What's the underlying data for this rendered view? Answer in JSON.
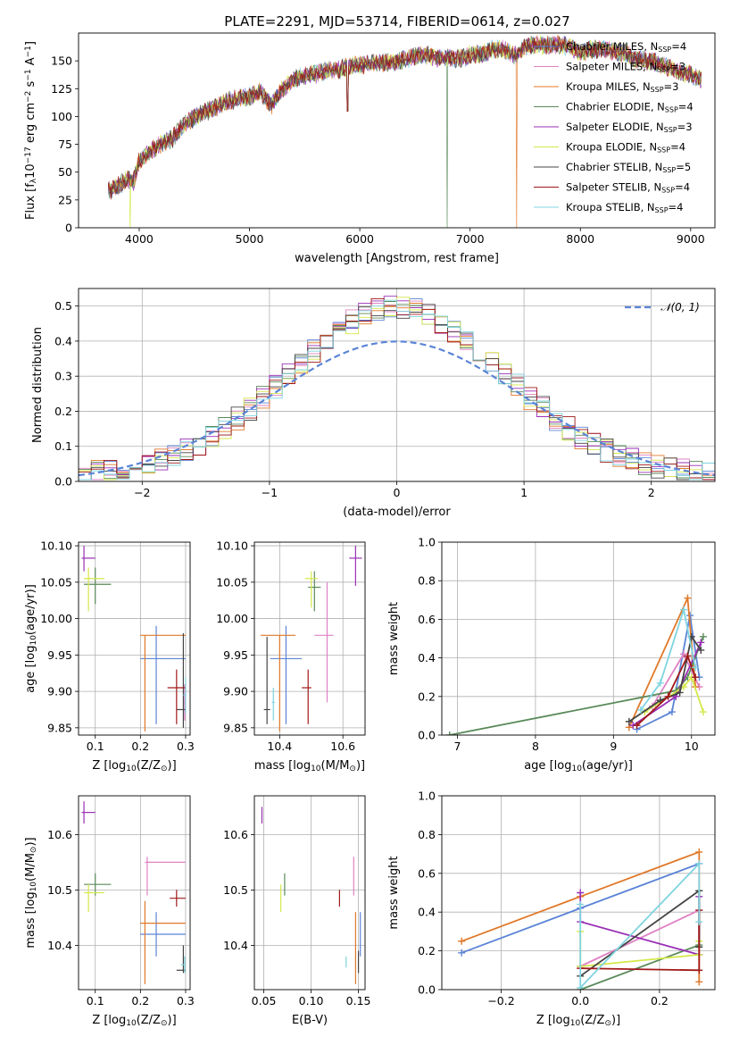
{
  "figure_title": "PLATE=2291, MJD=53714, FIBERID=0614, z=0.027",
  "series_colors": [
    "#5b84d6",
    "#e082c4",
    "#e0792a",
    "#5a8a5a",
    "#9a2fb5",
    "#d4e84a",
    "#444444",
    "#a01818",
    "#7fd4e0"
  ],
  "models": [
    {
      "name_main": "Chabrier MILES, N",
      "name_sub": "SSP",
      "name_tail": "=4"
    },
    {
      "name_main": "Salpeter MILES, N",
      "name_sub": "SSP",
      "name_tail": "=3"
    },
    {
      "name_main": "Kroupa MILES, N",
      "name_sub": "SSP",
      "name_tail": "=3"
    },
    {
      "name_main": "Chabrier ELODIE, N",
      "name_sub": "SSP",
      "name_tail": "=4"
    },
    {
      "name_main": "Salpeter ELODIE, N",
      "name_sub": "SSP",
      "name_tail": "=3"
    },
    {
      "name_main": "Kroupa ELODIE, N",
      "name_sub": "SSP",
      "name_tail": "=4"
    },
    {
      "name_main": "Chabrier STELIB, N",
      "name_sub": "SSP",
      "name_tail": "=5"
    },
    {
      "name_main": "Salpeter STELIB, N",
      "name_sub": "SSP",
      "name_tail": "=4"
    },
    {
      "name_main": "Kroupa STELIB, N",
      "name_sub": "SSP",
      "name_tail": "=4"
    }
  ],
  "chart_data": [
    {
      "id": "spectrum",
      "type": "line",
      "xlabel": "wavelength [Angstrom, rest frame]",
      "ylabel": "Flux [f",
      "ylabel_parts": [
        "Flux [f",
        "λ",
        "10",
        "−17",
        " erg cm",
        "−2",
        " s",
        "−1",
        " A",
        "−1",
        "]"
      ],
      "xlim": [
        3450,
        9220
      ],
      "ylim": [
        0,
        175
      ],
      "xticks": [
        4000,
        5000,
        6000,
        7000,
        8000,
        9000
      ],
      "yticks": [
        0,
        25,
        50,
        75,
        100,
        125,
        150
      ],
      "legend": "upper right",
      "continuum_x": [
        3720,
        3800,
        3900,
        3950,
        4000,
        4100,
        4200,
        4300,
        4400,
        4500,
        4600,
        4700,
        4800,
        4900,
        5000,
        5100,
        5200,
        5300,
        5400,
        5500,
        5600,
        5700,
        5800,
        5900,
        6000,
        6100,
        6200,
        6300,
        6400,
        6500,
        6600,
        6700,
        6800,
        6900,
        7000,
        7100,
        7200,
        7300,
        7400,
        7500,
        7600,
        7700,
        7800,
        7900,
        8000,
        8100,
        8200,
        8300,
        8400,
        8500,
        8600,
        8700,
        8800,
        8900,
        9000,
        9100
      ],
      "continuum_y": [
        33,
        37,
        44,
        42,
        60,
        68,
        76,
        80,
        92,
        99,
        104,
        108,
        114,
        116,
        118,
        122,
        110,
        125,
        133,
        137,
        138,
        141,
        142,
        145,
        146,
        148,
        148,
        149,
        151,
        154,
        155,
        153,
        153,
        152,
        155,
        156,
        160,
        160,
        155,
        163,
        165,
        164,
        165,
        163,
        158,
        160,
        161,
        158,
        157,
        152,
        150,
        148,
        144,
        140,
        138,
        133
      ]
    },
    {
      "id": "residuals",
      "type": "step",
      "xlabel": "(data-model)/error",
      "ylabel": "Normed distribution",
      "xlim": [
        -2.5,
        2.5
      ],
      "ylim": [
        0,
        0.55
      ],
      "xticks": [
        -2,
        -1,
        0,
        1,
        2
      ],
      "yticks": [
        0.0,
        0.1,
        0.2,
        0.3,
        0.4,
        0.5
      ],
      "grid": true,
      "legend": "upper right",
      "reference_label": "𝒩(0, 1)",
      "bin_width": 0.1,
      "bin_start": -2.5,
      "bins": 50
    },
    {
      "id": "age-vs-Z",
      "type": "scatter",
      "xlabel_parts": [
        "Z [log",
        "10",
        "(Z/Z",
        "⊙",
        ")]"
      ],
      "ylabel_parts": [
        "age  [log",
        "10",
        "(age/yr)]"
      ],
      "xlim": [
        0.063,
        0.31
      ],
      "ylim": [
        9.84,
        10.105
      ],
      "xticks": [
        0.1,
        0.2,
        0.3
      ],
      "yticks": [
        9.85,
        9.9,
        9.95,
        10.0,
        10.05,
        10.1
      ],
      "grid": true,
      "points": [
        {
          "series": 0,
          "x": 0.235,
          "y": 9.945,
          "xerr": [
            0.2,
            0.3
          ],
          "yerr": [
            9.855,
            9.99
          ]
        },
        {
          "series": 1,
          "x": 0.298,
          "y": 9.885,
          "xerr": [
            0.295,
            0.3
          ],
          "yerr": [
            9.86,
            9.91
          ]
        },
        {
          "series": 2,
          "x": 0.21,
          "y": 9.977,
          "xerr": [
            0.2,
            0.3
          ],
          "yerr": [
            9.845,
            9.977
          ]
        },
        {
          "series": 3,
          "x": 0.1,
          "y": 10.047,
          "xerr": [
            0.075,
            0.135
          ],
          "yerr": [
            10.02,
            10.07
          ]
        },
        {
          "series": 4,
          "x": 0.075,
          "y": 10.083,
          "xerr": [
            0.07,
            0.1
          ],
          "yerr": [
            10.065,
            10.1
          ]
        },
        {
          "series": 5,
          "x": 0.085,
          "y": 10.055,
          "xerr": [
            0.075,
            0.12
          ],
          "yerr": [
            10.01,
            10.07
          ]
        },
        {
          "series": 6,
          "x": 0.295,
          "y": 9.875,
          "xerr": [
            0.28,
            0.3
          ],
          "yerr": [
            9.85,
            9.98
          ]
        },
        {
          "series": 7,
          "x": 0.28,
          "y": 9.905,
          "xerr": [
            0.26,
            0.3
          ],
          "yerr": [
            9.855,
            9.93
          ]
        },
        {
          "series": 8,
          "x": 0.3,
          "y": 9.895,
          "xerr": [
            0.295,
            0.3
          ],
          "yerr": [
            9.87,
            9.92
          ]
        }
      ]
    },
    {
      "id": "age-vs-mass",
      "type": "scatter",
      "xlabel_parts": [
        "mass [log",
        "10",
        "(M/M",
        "⊙",
        ")]"
      ],
      "ylabel": "",
      "xlim": [
        10.32,
        10.67
      ],
      "ylim": [
        9.84,
        10.105
      ],
      "xticks": [
        10.4,
        10.6
      ],
      "yticks": [
        9.85,
        9.9,
        9.95,
        10.0,
        10.05,
        10.1
      ],
      "grid": true,
      "points": [
        {
          "series": 0,
          "x": 10.42,
          "y": 9.945,
          "xerr": [
            10.37,
            10.47
          ],
          "yerr": [
            9.855,
            9.99
          ]
        },
        {
          "series": 1,
          "x": 10.55,
          "y": 9.977,
          "xerr": [
            10.51,
            10.57
          ],
          "yerr": [
            9.885,
            10.05
          ]
        },
        {
          "series": 2,
          "x": 10.4,
          "y": 9.977,
          "xerr": [
            10.34,
            10.45
          ],
          "yerr": [
            9.845,
            9.977
          ]
        },
        {
          "series": 3,
          "x": 10.51,
          "y": 10.043,
          "xerr": [
            10.49,
            10.53
          ],
          "yerr": [
            10.01,
            10.065
          ]
        },
        {
          "series": 4,
          "x": 10.64,
          "y": 10.083,
          "xerr": [
            10.62,
            10.66
          ],
          "yerr": [
            10.045,
            10.1
          ]
        },
        {
          "series": 5,
          "x": 10.5,
          "y": 10.055,
          "xerr": [
            10.48,
            10.52
          ],
          "yerr": [
            10.015,
            10.065
          ]
        },
        {
          "series": 6,
          "x": 10.36,
          "y": 9.875,
          "xerr": [
            10.35,
            10.37
          ],
          "yerr": [
            9.855,
            9.975
          ]
        },
        {
          "series": 7,
          "x": 10.49,
          "y": 9.905,
          "xerr": [
            10.47,
            10.5
          ],
          "yerr": [
            9.855,
            9.93
          ]
        },
        {
          "series": 8,
          "x": 10.38,
          "y": 9.885,
          "xerr": [
            10.375,
            10.385
          ],
          "yerr": [
            9.86,
            9.905
          ]
        }
      ]
    },
    {
      "id": "weight-vs-age",
      "type": "line",
      "xlabel_parts": [
        "age  [log",
        "10",
        "(age/yr)]"
      ],
      "ylabel": "mass weight",
      "xlim": [
        6.8,
        10.3
      ],
      "ylim": [
        0,
        1.0
      ],
      "xticks": [
        7,
        8,
        9,
        10
      ],
      "yticks": [
        0.0,
        0.2,
        0.4,
        0.6,
        0.8,
        1.0
      ],
      "grid": true,
      "series": [
        {
          "x": [
            9.3,
            9.75,
            9.98,
            10.1
          ],
          "y": [
            0.03,
            0.12,
            0.62,
            0.3
          ]
        },
        {
          "x": [
            9.5,
            9.9,
            10.1
          ],
          "y": [
            0.15,
            0.42,
            0.25
          ]
        },
        {
          "x": [
            9.2,
            9.95,
            10.05
          ],
          "y": [
            0.04,
            0.71,
            0.25
          ]
        },
        {
          "x": [
            6.9,
            9.8,
            9.95,
            10.15
          ],
          "y": [
            0.0,
            0.23,
            0.3,
            0.51
          ]
        },
        {
          "x": [
            9.25,
            9.8,
            10.12
          ],
          "y": [
            0.05,
            0.2,
            0.48
          ]
        },
        {
          "x": [
            9.4,
            9.9,
            10.0,
            10.15
          ],
          "y": [
            0.12,
            0.25,
            0.3,
            0.12
          ]
        },
        {
          "x": [
            9.2,
            9.6,
            9.85,
            10.0,
            10.12
          ],
          "y": [
            0.07,
            0.18,
            0.22,
            0.51,
            0.44
          ]
        },
        {
          "x": [
            9.3,
            9.7,
            9.95,
            10.05
          ],
          "y": [
            0.05,
            0.2,
            0.41,
            0.3
          ]
        },
        {
          "x": [
            9.35,
            9.6,
            9.9,
            10.05
          ],
          "y": [
            0.13,
            0.27,
            0.65,
            0.35
          ]
        }
      ]
    },
    {
      "id": "mass-vs-Z",
      "type": "scatter",
      "xlabel_parts": [
        "Z [log",
        "10",
        "(Z/Z",
        "⊙",
        ")]"
      ],
      "ylabel_parts": [
        "mass [log",
        "10",
        "(M/M",
        "⊙",
        ")]"
      ],
      "xlim": [
        0.063,
        0.31
      ],
      "ylim": [
        10.32,
        10.67
      ],
      "xticks": [
        0.1,
        0.2,
        0.3
      ],
      "yticks": [
        10.4,
        10.5,
        10.6
      ],
      "grid": true,
      "points": [
        {
          "series": 0,
          "x": 0.235,
          "y": 10.42,
          "xerr": [
            0.2,
            0.3
          ],
          "yerr": [
            10.38,
            10.46
          ]
        },
        {
          "series": 1,
          "x": 0.215,
          "y": 10.55,
          "xerr": [
            0.21,
            0.3
          ],
          "yerr": [
            10.49,
            10.56
          ]
        },
        {
          "series": 2,
          "x": 0.21,
          "y": 10.44,
          "xerr": [
            0.2,
            0.3
          ],
          "yerr": [
            10.33,
            10.48
          ]
        },
        {
          "series": 3,
          "x": 0.1,
          "y": 10.51,
          "xerr": [
            0.075,
            0.135
          ],
          "yerr": [
            10.49,
            10.53
          ]
        },
        {
          "series": 4,
          "x": 0.075,
          "y": 10.64,
          "xerr": [
            0.07,
            0.1
          ],
          "yerr": [
            10.62,
            10.66
          ]
        },
        {
          "series": 5,
          "x": 0.085,
          "y": 10.495,
          "xerr": [
            0.075,
            0.12
          ],
          "yerr": [
            10.46,
            10.51
          ]
        },
        {
          "series": 6,
          "x": 0.295,
          "y": 10.355,
          "xerr": [
            0.28,
            0.3
          ],
          "yerr": [
            10.35,
            10.4
          ]
        },
        {
          "series": 7,
          "x": 0.28,
          "y": 10.485,
          "xerr": [
            0.265,
            0.3
          ],
          "yerr": [
            10.47,
            10.5
          ]
        },
        {
          "series": 8,
          "x": 0.298,
          "y": 10.365,
          "xerr": [
            0.29,
            0.3
          ],
          "yerr": [
            10.35,
            10.38
          ]
        }
      ]
    },
    {
      "id": "mass-vs-ebv",
      "type": "scatter",
      "xlabel": "E(B-V)",
      "ylabel": "",
      "xlim": [
        0.04,
        0.157
      ],
      "ylim": [
        10.32,
        10.67
      ],
      "xticks": [
        0.05,
        0.1,
        0.15
      ],
      "yticks": [
        10.4,
        10.5,
        10.6
      ],
      "grid": true,
      "points": [
        {
          "series": 0,
          "x": 0.152,
          "y": 10.42,
          "yerr": [
            10.38,
            10.46
          ]
        },
        {
          "series": 1,
          "x": 0.145,
          "y": 10.55,
          "yerr": [
            10.49,
            10.56
          ]
        },
        {
          "series": 2,
          "x": 0.147,
          "y": 10.44,
          "yerr": [
            10.33,
            10.46
          ]
        },
        {
          "series": 3,
          "x": 0.072,
          "y": 10.51,
          "yerr": [
            10.49,
            10.53
          ]
        },
        {
          "series": 4,
          "x": 0.048,
          "y": 10.64,
          "yerr": [
            10.62,
            10.65
          ]
        },
        {
          "series": 5,
          "x": 0.068,
          "y": 10.49,
          "yerr": [
            10.46,
            10.51
          ]
        },
        {
          "series": 6,
          "x": 0.15,
          "y": 10.355,
          "yerr": [
            10.35,
            10.39
          ]
        },
        {
          "series": 7,
          "x": 0.13,
          "y": 10.49,
          "yerr": [
            10.47,
            10.5
          ]
        },
        {
          "series": 8,
          "x": 0.137,
          "y": 10.37,
          "yerr": [
            10.36,
            10.38
          ]
        }
      ]
    },
    {
      "id": "weight-vs-Z",
      "type": "line",
      "xlabel_parts": [
        "Z [log",
        "10",
        "(Z/Z",
        "⊙",
        ")]"
      ],
      "ylabel": "mass weight",
      "xlim": [
        -0.35,
        0.34
      ],
      "ylim": [
        0,
        1.0
      ],
      "xticks": [
        -0.2,
        0.0,
        0.2
      ],
      "xtick_labels": [
        "−0.2",
        "0.0",
        "0.2"
      ],
      "yticks": [
        0.0,
        0.2,
        0.4,
        0.6,
        0.8,
        1.0
      ],
      "grid": true,
      "series": [
        {
          "x": [
            -0.3,
            0.0,
            0.3
          ],
          "y": [
            0.19,
            0.42,
            0.65
          ]
        },
        {
          "x": [
            0.0,
            0.3
          ],
          "y": [
            0.12,
            0.41
          ]
        },
        {
          "x": [
            -0.3,
            0.0,
            0.3,
            0.3
          ],
          "y": [
            0.25,
            0.48,
            0.71,
            0.04
          ]
        },
        {
          "x": [
            0.0,
            0.3,
            0.3
          ],
          "y": [
            0.0,
            0.23,
            0.51
          ]
        },
        {
          "x": [
            0.0,
            0.0,
            0.3,
            0.3
          ],
          "y": [
            0.5,
            0.35,
            0.18,
            0.48
          ]
        },
        {
          "x": [
            0.0,
            0.0,
            0.3,
            0.3
          ],
          "y": [
            0.3,
            0.12,
            0.18,
            0.25
          ]
        },
        {
          "x": [
            0.0,
            0.3,
            0.3
          ],
          "y": [
            0.07,
            0.51,
            0.22
          ]
        },
        {
          "x": [
            0.0,
            0.3,
            0.3
          ],
          "y": [
            0.11,
            0.1,
            0.41
          ]
        },
        {
          "x": [
            0.0,
            0.0,
            0.3,
            0.3
          ],
          "y": [
            0.44,
            0.01,
            0.65,
            0.35
          ]
        }
      ]
    }
  ]
}
